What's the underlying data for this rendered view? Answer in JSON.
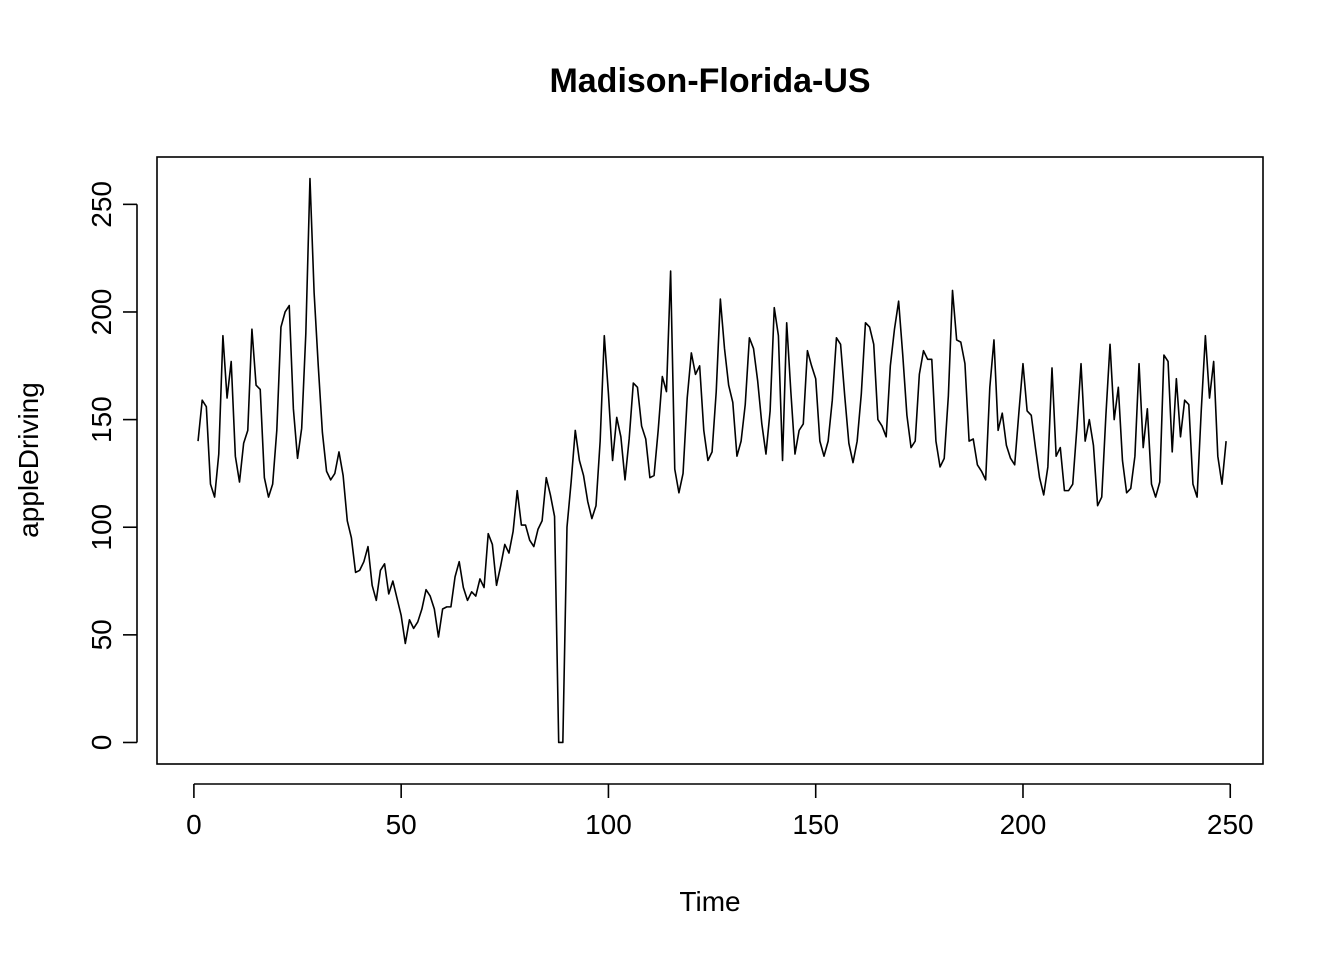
{
  "chart_data": {
    "type": "line",
    "title": "Madison-Florida-US",
    "xlabel": "Time",
    "ylabel": "appleDriving",
    "xlim": [
      -8.9,
      257.9
    ],
    "ylim": [
      -10,
      272
    ],
    "x_ticks": [
      0,
      50,
      100,
      150,
      200,
      250
    ],
    "y_ticks": [
      0,
      50,
      100,
      150,
      200,
      250
    ],
    "x_tick_labels": [
      "0",
      "50",
      "100",
      "150",
      "200",
      "250"
    ],
    "y_tick_labels": [
      "0",
      "50",
      "100",
      "150",
      "200",
      "250"
    ],
    "grid": false,
    "legend": "none",
    "line_color": "#000000",
    "series": [
      {
        "x_start": 1,
        "values": [
          140,
          159,
          156,
          120,
          114,
          134,
          189,
          160,
          177,
          133,
          121,
          139,
          145,
          192,
          166,
          164,
          123,
          114,
          120,
          145,
          193,
          200,
          203,
          155,
          132,
          146,
          190,
          262,
          209,
          175,
          144,
          126,
          122,
          125,
          135,
          124,
          103,
          95,
          79,
          80,
          84,
          91,
          73,
          66,
          80,
          83,
          69,
          75,
          67,
          59,
          46,
          57,
          53,
          56,
          62,
          71,
          68,
          62,
          49,
          62,
          63,
          63,
          77,
          84,
          72,
          66,
          70,
          68,
          76,
          72,
          97,
          92,
          73,
          82,
          92,
          88,
          98,
          117,
          101,
          101,
          94,
          91,
          99,
          103,
          123,
          115,
          105,
          0,
          0,
          100,
          121,
          145,
          131,
          124,
          112,
          104,
          110,
          140,
          189,
          162,
          131,
          151,
          142,
          122,
          141,
          167,
          165,
          147,
          141,
          123,
          124,
          145,
          170,
          163,
          219,
          127,
          116,
          125,
          160,
          181,
          171,
          175,
          145,
          131,
          135,
          163,
          206,
          183,
          166,
          158,
          133,
          140,
          157,
          188,
          183,
          168,
          148,
          134,
          154,
          202,
          189,
          131,
          195,
          163,
          134,
          145,
          148,
          182,
          175,
          169,
          140,
          133,
          140,
          159,
          188,
          185,
          161,
          139,
          130,
          140,
          162,
          195,
          193,
          185,
          150,
          147,
          142,
          175,
          192,
          205,
          180,
          152,
          137,
          140,
          171,
          182,
          178,
          178,
          140,
          128,
          132,
          161,
          210,
          187,
          186,
          176,
          140,
          141,
          129,
          126,
          122,
          165,
          187,
          145,
          153,
          138,
          132,
          129,
          153,
          176,
          154,
          152,
          137,
          123,
          115,
          128,
          174,
          133,
          137,
          117,
          117,
          120,
          146,
          176,
          140,
          150,
          138,
          110,
          114,
          152,
          185,
          150,
          165,
          131,
          116,
          118,
          133,
          176,
          137,
          155,
          120,
          114,
          121,
          180,
          177,
          135,
          169,
          142,
          159,
          157,
          120,
          114,
          154,
          189,
          160,
          177,
          133,
          120,
          140
        ]
      }
    ]
  }
}
